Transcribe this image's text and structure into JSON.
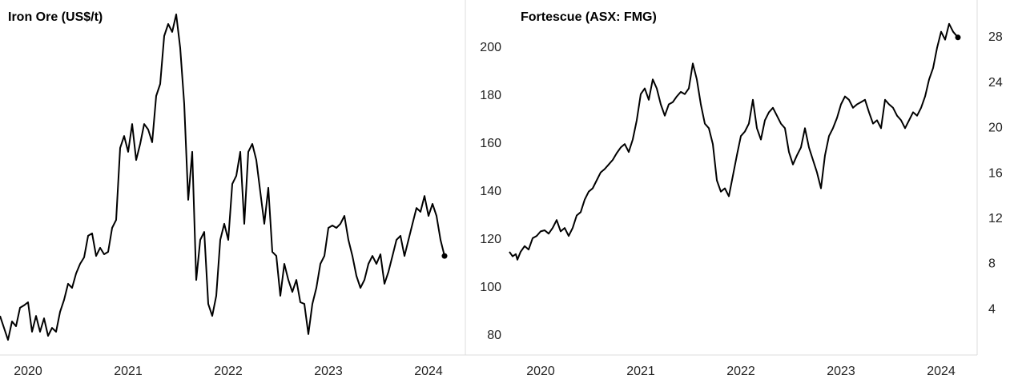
{
  "chart_data": [
    {
      "type": "line",
      "title": "Iron Ore (US$/t)",
      "x": [
        2019.72,
        2019.76,
        2019.8,
        2019.84,
        2019.88,
        2019.92,
        2019.96,
        2020,
        2020.04,
        2020.08,
        2020.12,
        2020.16,
        2020.2,
        2020.24,
        2020.28,
        2020.32,
        2020.36,
        2020.4,
        2020.44,
        2020.48,
        2020.52,
        2020.56,
        2020.6,
        2020.64,
        2020.68,
        2020.72,
        2020.76,
        2020.8,
        2020.84,
        2020.88,
        2020.92,
        2020.96,
        2021,
        2021.04,
        2021.08,
        2021.12,
        2021.16,
        2021.2,
        2021.24,
        2021.28,
        2021.32,
        2021.36,
        2021.4,
        2021.44,
        2021.48,
        2021.52,
        2021.56,
        2021.6,
        2021.64,
        2021.68,
        2021.72,
        2021.76,
        2021.8,
        2021.84,
        2021.88,
        2021.92,
        2021.96,
        2022,
        2022.04,
        2022.08,
        2022.12,
        2022.16,
        2022.2,
        2022.24,
        2022.28,
        2022.32,
        2022.36,
        2022.4,
        2022.44,
        2022.48,
        2022.52,
        2022.56,
        2022.6,
        2022.64,
        2022.68,
        2022.72,
        2022.76,
        2022.8,
        2022.84,
        2022.88,
        2022.92,
        2022.96,
        2023,
        2023.04,
        2023.08,
        2023.12,
        2023.16,
        2023.2,
        2023.24,
        2023.28,
        2023.32,
        2023.36,
        2023.4,
        2023.44,
        2023.48,
        2023.52,
        2023.56,
        2023.6,
        2023.64,
        2023.68,
        2023.72,
        2023.76,
        2023.8,
        2023.84,
        2023.88,
        2023.92,
        2023.96,
        2024,
        2024.04,
        2024.08,
        2024.12,
        2024.16
      ],
      "series": [
        {
          "color": "#000000",
          "values": [
            88.3,
            83.3,
            78.3,
            86,
            84,
            91.7,
            92.7,
            94,
            81.7,
            88.3,
            81.7,
            87.3,
            80,
            83.3,
            81.7,
            90,
            95,
            101.7,
            100,
            106,
            110,
            112.7,
            121.7,
            122.7,
            113.3,
            116.7,
            114,
            115,
            125,
            128.3,
            158.3,
            163.3,
            156.7,
            168.3,
            153.3,
            160,
            168.3,
            166,
            160.7,
            180,
            185,
            205,
            210,
            206.7,
            214,
            200,
            176.7,
            136.7,
            156.7,
            103.3,
            120,
            123.3,
            93.3,
            88.3,
            96.7,
            120,
            126.7,
            120,
            143.3,
            146.7,
            156.7,
            126.7,
            156.7,
            160,
            153.3,
            140,
            126.7,
            141.7,
            115,
            113.3,
            96.7,
            110,
            103.3,
            98.3,
            103.3,
            94,
            93.3,
            80.7,
            93.3,
            100,
            110,
            113.3,
            125,
            126,
            125,
            126.7,
            130,
            120,
            113.3,
            105,
            100,
            103.3,
            110,
            113.3,
            110,
            114,
            101.7,
            106.7,
            113.3,
            120,
            121.7,
            113.3,
            120,
            126.7,
            133.3,
            131.7,
            138.3,
            130,
            135,
            130,
            120,
            113.3
          ]
        }
      ],
      "end_marker": true,
      "xlim": [
        2019.72,
        2024.36
      ],
      "xticks": [
        2020,
        2021,
        2022,
        2023,
        2024
      ],
      "ylim": [
        72,
        220
      ],
      "yticks": [
        80,
        100,
        120,
        140,
        160,
        180,
        200
      ],
      "grid": false
    },
    {
      "type": "line",
      "title": "Fortescue (ASX: FMG)",
      "x": [
        2019.688,
        2019.72,
        2019.752,
        2019.768,
        2019.8,
        2019.84,
        2019.88,
        2019.92,
        2019.96,
        2020,
        2020.04,
        2020.08,
        2020.12,
        2020.16,
        2020.2,
        2020.24,
        2020.28,
        2020.32,
        2020.36,
        2020.4,
        2020.44,
        2020.48,
        2020.52,
        2020.56,
        2020.6,
        2020.64,
        2020.68,
        2020.72,
        2020.76,
        2020.8,
        2020.84,
        2020.88,
        2020.92,
        2020.96,
        2021,
        2021.04,
        2021.08,
        2021.12,
        2021.16,
        2021.2,
        2021.24,
        2021.28,
        2021.32,
        2021.36,
        2021.4,
        2021.44,
        2021.48,
        2021.52,
        2021.56,
        2021.6,
        2021.64,
        2021.68,
        2021.72,
        2021.76,
        2021.8,
        2021.84,
        2021.88,
        2021.92,
        2021.96,
        2022,
        2022.04,
        2022.08,
        2022.12,
        2022.16,
        2022.2,
        2022.24,
        2022.28,
        2022.32,
        2022.36,
        2022.4,
        2022.44,
        2022.48,
        2022.52,
        2022.56,
        2022.6,
        2022.64,
        2022.68,
        2022.72,
        2022.76,
        2022.8,
        2022.84,
        2022.88,
        2022.92,
        2022.96,
        2023,
        2023.04,
        2023.08,
        2023.12,
        2023.16,
        2023.2,
        2023.24,
        2023.28,
        2023.32,
        2023.36,
        2023.4,
        2023.44,
        2023.48,
        2023.52,
        2023.56,
        2023.6,
        2023.64,
        2023.68,
        2023.72,
        2023.76,
        2023.8,
        2023.84,
        2023.88,
        2023.92,
        2023.96,
        2024,
        2024.04,
        2024.08,
        2024.12,
        2024.168
      ],
      "series": [
        {
          "color": "#000000",
          "values": [
            9.1,
            8.7,
            8.9,
            8.4,
            9.1,
            9.6,
            9.3,
            10.3,
            10.5,
            10.9,
            11,
            10.7,
            11.2,
            11.9,
            10.9,
            11.2,
            10.5,
            11.2,
            12.3,
            12.6,
            13.7,
            14.4,
            14.7,
            15.4,
            16.1,
            16.4,
            16.8,
            17.2,
            17.8,
            18.3,
            18.6,
            17.9,
            19,
            20.7,
            23,
            23.5,
            22.5,
            24.3,
            23.5,
            22.1,
            21.1,
            22.1,
            22.3,
            22.8,
            23.2,
            23,
            23.5,
            25.7,
            24.3,
            22.1,
            20.4,
            20,
            18.6,
            15.4,
            14.4,
            14.7,
            14,
            15.8,
            17.6,
            19.3,
            19.7,
            20.4,
            22.5,
            20,
            19,
            20.7,
            21.4,
            21.8,
            21.1,
            20.4,
            20,
            17.9,
            16.8,
            17.6,
            18.3,
            20,
            18.3,
            17.2,
            16.1,
            14.7,
            17.6,
            19.3,
            20,
            20.9,
            22.1,
            22.8,
            22.5,
            21.8,
            22.1,
            22.3,
            22.5,
            21.4,
            20.4,
            20.7,
            20,
            22.5,
            22.1,
            21.8,
            21.1,
            20.7,
            20,
            20.7,
            21.4,
            21.1,
            21.8,
            22.8,
            24.3,
            25.3,
            27.1,
            28.5,
            27.8,
            29.2,
            28.5,
            28
          ]
        }
      ],
      "end_marker": true,
      "xlim": [
        2019.256,
        2024.36
      ],
      "xticks": [
        2020,
        2021,
        2022,
        2023,
        2024
      ],
      "ylim": [
        0,
        31.3
      ],
      "yticks": [
        4,
        8,
        12,
        16,
        20,
        24,
        28
      ],
      "grid": false
    }
  ]
}
